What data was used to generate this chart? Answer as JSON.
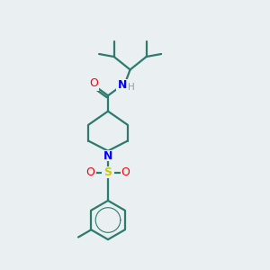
{
  "background_color": "#eaeff1",
  "bond_color": "#2d7a6e",
  "nitrogen_color": "#0000ff",
  "oxygen_color": "#ff0000",
  "sulfur_color": "#cccc00",
  "hydrogen_color": "#999999",
  "line_width": 1.6,
  "fig_width": 3.0,
  "fig_height": 3.0,
  "dpi": 100,
  "xlim": [
    0,
    10
  ],
  "ylim": [
    0,
    10
  ]
}
